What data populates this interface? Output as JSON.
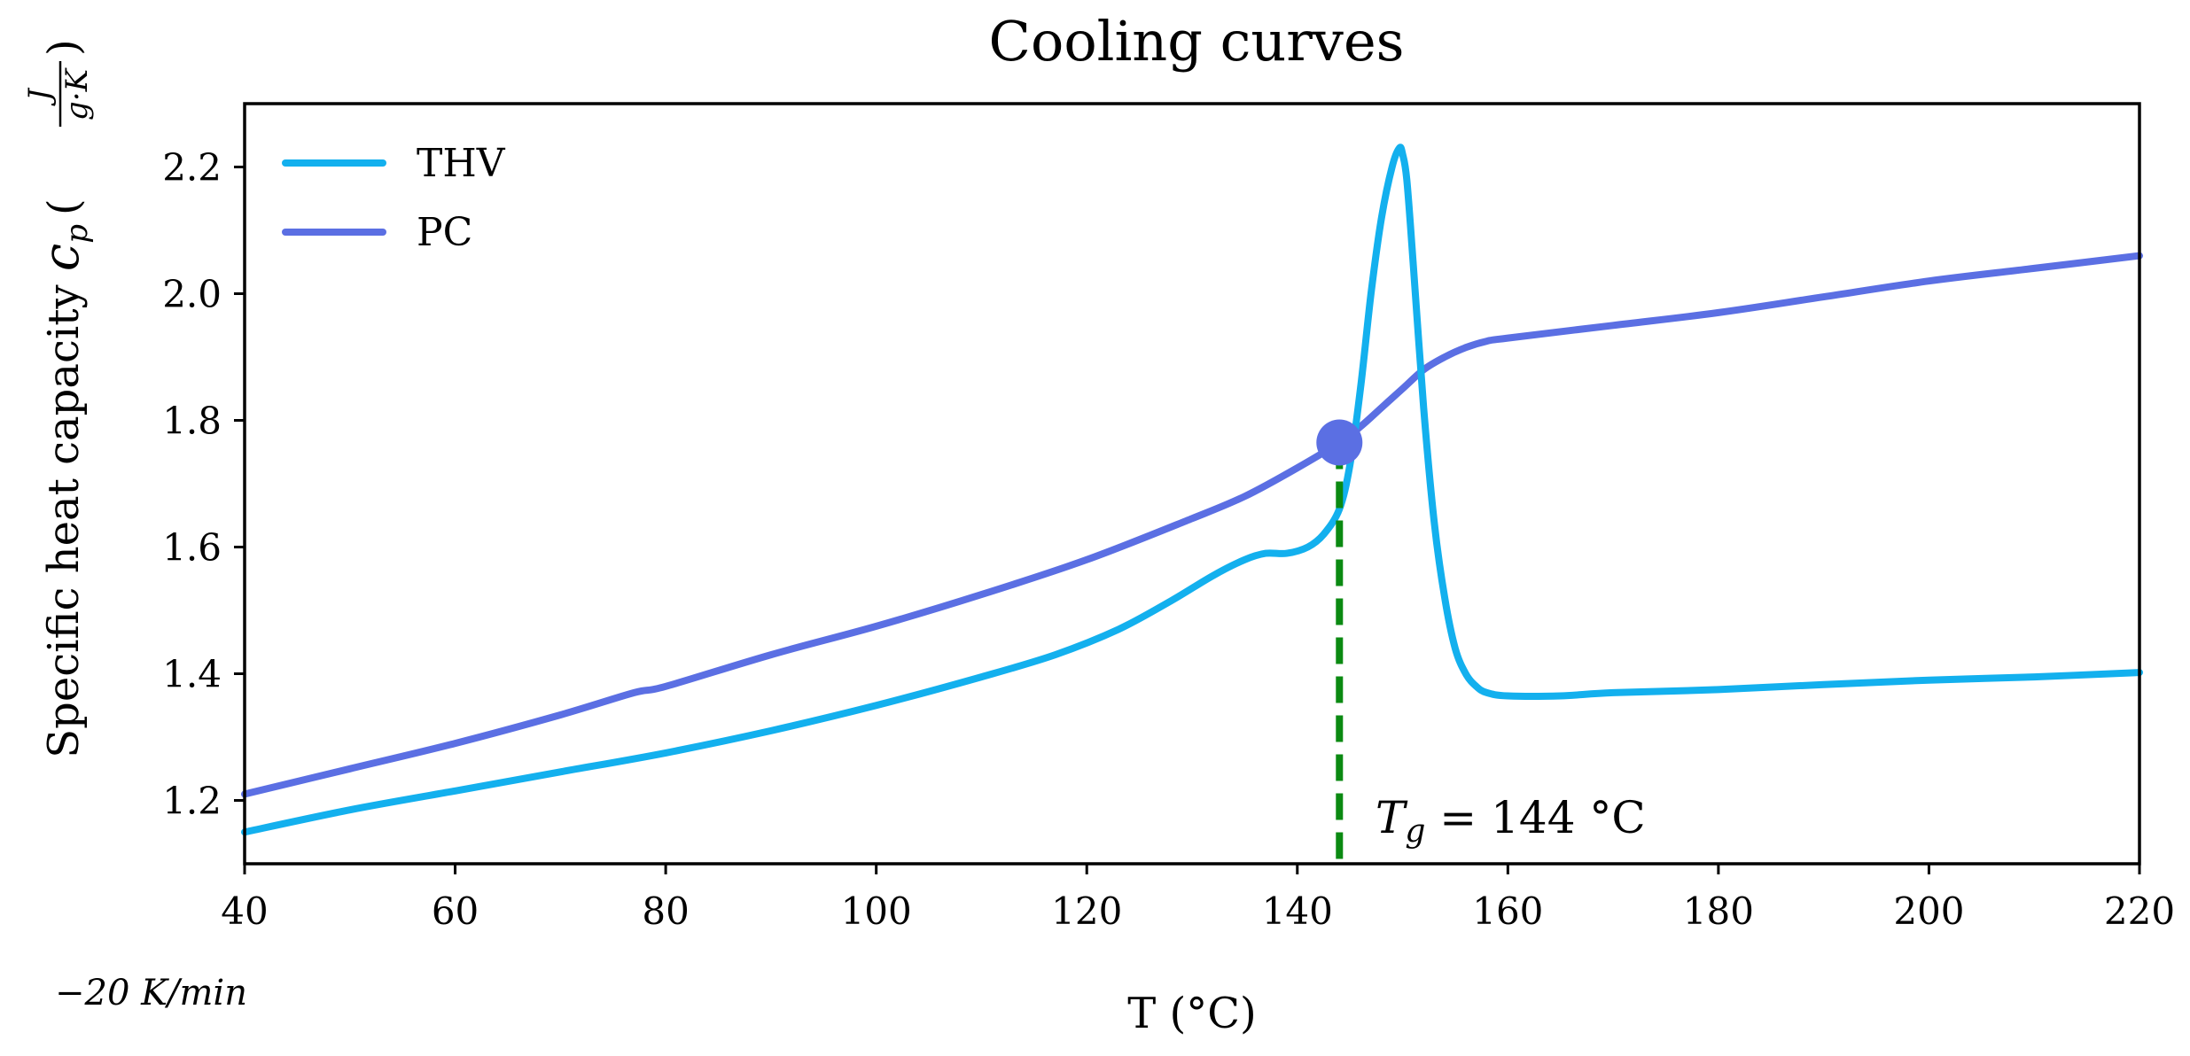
{
  "chart_data": {
    "type": "line",
    "title": "Cooling curves",
    "xlabel": "T (°C)",
    "ylabel": "Specific heat capacity c_p (J / g·K)",
    "ylabel_parts": {
      "prefix": "Specific heat capacity ",
      "symbol": "c",
      "subscript": "p",
      "open_paren": "(",
      "numerator": "J",
      "denominator": "g·K",
      "close_paren": ")"
    },
    "xlim": [
      40,
      220
    ],
    "ylim": [
      1.1,
      2.3
    ],
    "xticks": [
      40,
      60,
      80,
      100,
      120,
      140,
      160,
      180,
      200,
      220
    ],
    "yticks": [
      1.2,
      1.4,
      1.6,
      1.8,
      2.0,
      2.2
    ],
    "xtick_labels": [
      "40",
      "60",
      "80",
      "100",
      "120",
      "140",
      "160",
      "180",
      "200",
      "220"
    ],
    "ytick_labels": [
      "1.2",
      "1.4",
      "1.6",
      "1.8",
      "2.0",
      "2.2"
    ],
    "legend_position": "top-left",
    "grid": false,
    "series": [
      {
        "name": "THV",
        "color": "#13B0EE",
        "x": [
          40,
          50,
          60,
          70,
          80,
          90,
          100,
          110,
          117,
          123,
          128,
          132,
          135,
          137,
          139,
          141,
          142.5,
          144,
          145,
          146,
          147,
          148,
          149,
          149.7,
          150,
          150.4,
          151,
          152,
          153,
          154,
          155,
          156,
          157,
          158,
          160,
          165,
          170,
          180,
          190,
          200,
          210,
          220
        ],
        "y": [
          1.15,
          1.185,
          1.215,
          1.245,
          1.275,
          1.31,
          1.35,
          1.395,
          1.43,
          1.47,
          1.515,
          1.555,
          1.58,
          1.59,
          1.59,
          1.6,
          1.62,
          1.66,
          1.73,
          1.85,
          2.0,
          2.12,
          2.2,
          2.23,
          2.22,
          2.18,
          2.05,
          1.82,
          1.64,
          1.52,
          1.44,
          1.4,
          1.38,
          1.37,
          1.365,
          1.365,
          1.37,
          1.375,
          1.383,
          1.39,
          1.395,
          1.402
        ]
      },
      {
        "name": "PC",
        "color": "#5B6FE3",
        "x": [
          40,
          50,
          60,
          70,
          77,
          80,
          90,
          100,
          110,
          120,
          130,
          135,
          140,
          144,
          146,
          148,
          150,
          152,
          154,
          156,
          158,
          160,
          170,
          180,
          190,
          200,
          210,
          220
        ],
        "y": [
          1.21,
          1.25,
          1.29,
          1.335,
          1.37,
          1.38,
          1.43,
          1.475,
          1.525,
          1.58,
          1.645,
          1.68,
          1.725,
          1.765,
          1.79,
          1.82,
          1.85,
          1.88,
          1.9,
          1.915,
          1.925,
          1.93,
          1.95,
          1.97,
          1.995,
          2.02,
          2.04,
          2.06
        ]
      }
    ],
    "marker": {
      "series": "PC",
      "x": 144,
      "y": 1.765,
      "color": "#5B6FE3"
    },
    "vline": {
      "x": 144,
      "color": "#0B8A12",
      "style": "dashed"
    },
    "annotations": {
      "tg_symbol": "T",
      "tg_subscript": "g",
      "tg_value": " = 144 °C",
      "tg_color": "#0B8A12",
      "rate": "−20 K/min"
    }
  }
}
